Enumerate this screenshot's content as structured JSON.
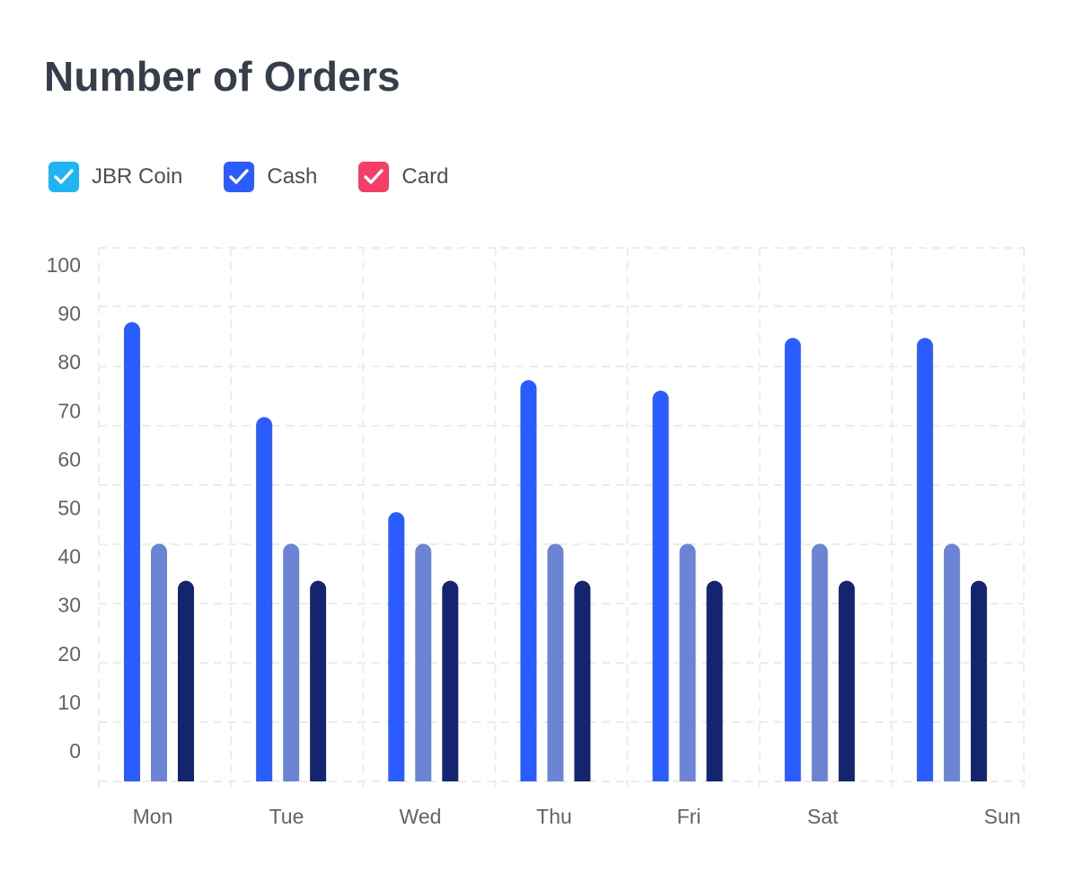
{
  "chart_data": {
    "type": "bar",
    "title": "Number of Orders",
    "categories": [
      "Mon",
      "Tue",
      "Wed",
      "Thu",
      "Fri",
      "Sat",
      "Sun"
    ],
    "series": [
      {
        "values": [
          87,
          69,
          51,
          76,
          74,
          84,
          84
        ],
        "color": "#2b5cff"
      },
      {
        "values": [
          45,
          45,
          45,
          45,
          45,
          45,
          45
        ],
        "color": "#6b84d4"
      },
      {
        "values": [
          38,
          38,
          38,
          38,
          38,
          38,
          38
        ],
        "color": "#14246e"
      }
    ],
    "yticks": [
      100,
      90,
      80,
      70,
      60,
      50,
      40,
      30,
      20,
      10,
      0
    ],
    "ylim": [
      0,
      100
    ],
    "grid": true,
    "legend": {
      "placement": "top-left",
      "items": [
        {
          "label": "JBR Coin",
          "color": "#1fb4f2",
          "checked": true
        },
        {
          "label": "Cash",
          "color": "#2b5cff",
          "checked": true
        },
        {
          "label": "Card",
          "color": "#f53f66",
          "checked": true
        }
      ]
    }
  }
}
